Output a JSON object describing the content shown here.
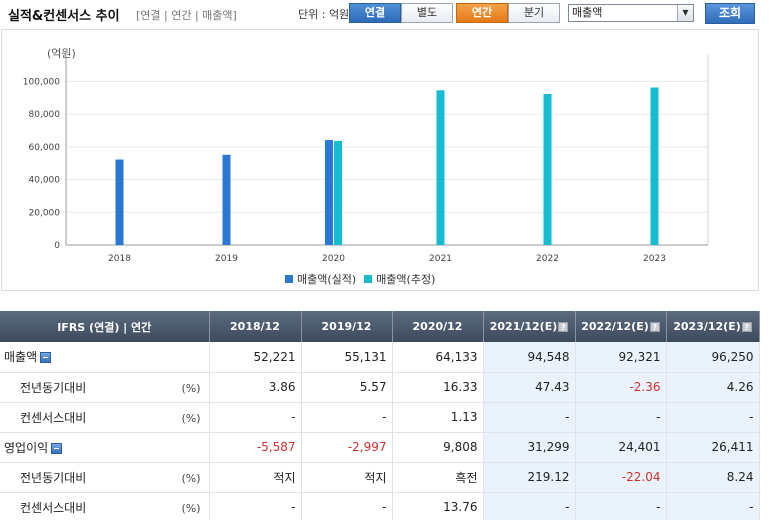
{
  "header": {
    "title": "실적&컨센서스 추이",
    "subtitle": "[연결 | 연간 | 매출액]",
    "unit": "단위 : 억원, 배",
    "consolidation_buttons": [
      "연결",
      "별도"
    ],
    "period_buttons": [
      "연간",
      "분기"
    ],
    "metric_select": "매출액",
    "query_button": "조회"
  },
  "chart": {
    "unit_label": "(억원)",
    "legend": [
      "매출액(실적)",
      "매출액(추정)"
    ],
    "colors": {
      "actual": "#2a78d6",
      "estimate": "#16bccf"
    }
  },
  "chart_data": {
    "type": "bar",
    "categories": [
      "2018",
      "2019",
      "2020",
      "2021",
      "2022",
      "2023"
    ],
    "series": [
      {
        "name": "매출액(실적)",
        "values": [
          52221,
          55131,
          64133,
          null,
          null,
          null
        ]
      },
      {
        "name": "매출액(추정)",
        "values": [
          null,
          null,
          63600,
          94548,
          92321,
          96250
        ]
      }
    ],
    "yticks": [
      "0",
      "20,000",
      "40,000",
      "60,000",
      "80,000",
      "100,000"
    ],
    "ylim": [
      0,
      110000
    ],
    "grid": true,
    "legend_position": "bottom"
  },
  "table": {
    "header": [
      "IFRS (연결) | 연간",
      "2018/12",
      "2019/12",
      "2020/12",
      "2021/12(E)",
      "2022/12(E)",
      "2023/12(E)"
    ],
    "rows": [
      {
        "label": "매출액",
        "pct": "",
        "values": [
          "52,221",
          "55,131",
          "64,133",
          "94,548",
          "92,321",
          "96,250"
        ]
      },
      {
        "label": "전년동기대비",
        "pct": "(%)",
        "values": [
          "3.86",
          "5.57",
          "16.33",
          "47.43",
          "-2.36",
          "4.26"
        ]
      },
      {
        "label": "컨센서스대비",
        "pct": "(%)",
        "values": [
          "-",
          "-",
          "1.13",
          "-",
          "-",
          "-"
        ]
      },
      {
        "label": "영업이익",
        "pct": "",
        "values": [
          "-5,587",
          "-2,997",
          "9,808",
          "31,299",
          "24,401",
          "26,411"
        ]
      },
      {
        "label": "전년동기대비",
        "pct": "(%)",
        "values": [
          "적지",
          "적지",
          "흑전",
          "219.12",
          "-22.04",
          "8.24"
        ]
      },
      {
        "label": "컨센서스대비",
        "pct": "(%)",
        "values": [
          "-",
          "-",
          "13.76",
          "-",
          "-",
          "-"
        ]
      }
    ]
  }
}
